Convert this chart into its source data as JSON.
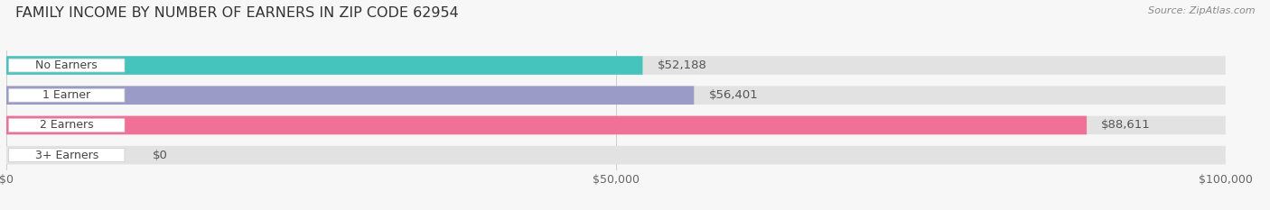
{
  "title": "FAMILY INCOME BY NUMBER OF EARNERS IN ZIP CODE 62954",
  "source": "Source: ZipAtlas.com",
  "categories": [
    "No Earners",
    "1 Earner",
    "2 Earners",
    "3+ Earners"
  ],
  "values": [
    52188,
    56401,
    88611,
    0
  ],
  "bar_colors": [
    "#45C4BE",
    "#9B9BC8",
    "#F07098",
    "#F0C898"
  ],
  "bar_labels": [
    "$52,188",
    "$56,401",
    "$88,611",
    "$0"
  ],
  "x_max": 100000,
  "x_tick_labels": [
    "$0",
    "$50,000",
    "$100,000"
  ],
  "bg_color": "#f7f7f7",
  "bar_bg_color": "#e2e2e2",
  "label_pill_color": "#ffffff",
  "value_label_color": "#555555",
  "title_color": "#333333",
  "source_color": "#888888",
  "title_fontsize": 11.5,
  "bar_label_fontsize": 9,
  "value_label_fontsize": 9.5,
  "tick_fontsize": 9
}
